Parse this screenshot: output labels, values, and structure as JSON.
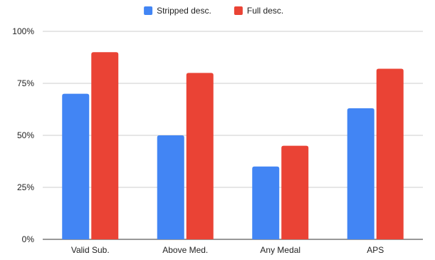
{
  "chart_data": {
    "type": "bar",
    "categories": [
      "Valid Sub.",
      "Above Med.",
      "Any Medal",
      "APS"
    ],
    "series": [
      {
        "name": "Stripped desc.",
        "color": "#4285F4",
        "values": [
          70,
          50,
          35,
          63
        ]
      },
      {
        "name": "Full desc.",
        "color": "#EA4335",
        "values": [
          90,
          80,
          45,
          82
        ]
      }
    ],
    "ylim": [
      0,
      100
    ],
    "yticks": [
      0,
      25,
      50,
      75,
      100
    ],
    "ytick_labels": [
      "0%",
      "25%",
      "50%",
      "75%",
      "100%"
    ],
    "title": "",
    "xlabel": "",
    "ylabel": "",
    "grid": true,
    "legend_position": "top-center"
  }
}
